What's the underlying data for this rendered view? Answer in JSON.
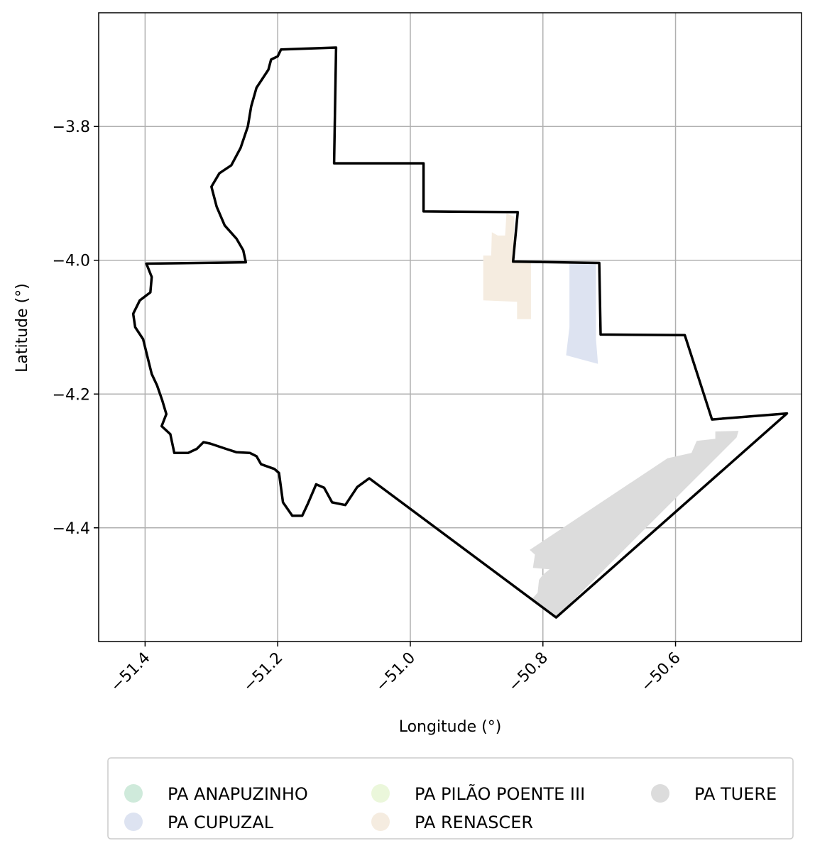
{
  "chart_data": {
    "type": "map",
    "xlabel": "Longitude (°)",
    "ylabel": "Latitude (°)",
    "xlim": [
      -51.47,
      -50.41
    ],
    "ylim": [
      -4.57,
      -3.63
    ],
    "x_ticks": [
      {
        "value": -51.4,
        "label": "−51.4"
      },
      {
        "value": -51.2,
        "label": "−51.2"
      },
      {
        "value": -51.0,
        "label": "−51.0"
      },
      {
        "value": -50.8,
        "label": "−50.8"
      },
      {
        "value": -50.6,
        "label": "−50.6"
      }
    ],
    "y_ticks": [
      {
        "value": -3.8,
        "label": "−3.8"
      },
      {
        "value": -4.0,
        "label": "−4.0"
      },
      {
        "value": -4.2,
        "label": "−4.2"
      },
      {
        "value": -4.4,
        "label": "−4.4"
      }
    ],
    "grid": true,
    "legend_placement": "bottom-center",
    "boundary_color": "#000000",
    "boundary": [
      [
        -51.195,
        -3.685
      ],
      [
        -51.112,
        -3.682
      ],
      [
        -51.115,
        -3.855
      ],
      [
        -50.98,
        -3.855
      ],
      [
        -50.98,
        -3.927
      ],
      [
        -50.838,
        -3.928
      ],
      [
        -50.845,
        -4.002
      ],
      [
        -50.715,
        -4.004
      ],
      [
        -50.713,
        -4.111
      ],
      [
        -50.586,
        -4.112
      ],
      [
        -50.545,
        -4.238
      ],
      [
        -50.432,
        -4.229
      ],
      [
        -50.78,
        -4.534
      ],
      [
        -51.062,
        -4.326
      ],
      [
        -51.08,
        -4.339
      ],
      [
        -51.098,
        -4.366
      ],
      [
        -51.118,
        -4.362
      ],
      [
        -51.13,
        -4.34
      ],
      [
        -51.142,
        -4.335
      ],
      [
        -51.155,
        -4.365
      ],
      [
        -51.163,
        -4.382
      ],
      [
        -51.178,
        -4.382
      ],
      [
        -51.192,
        -4.362
      ],
      [
        -51.198,
        -4.318
      ],
      [
        -51.205,
        -4.312
      ],
      [
        -51.225,
        -4.305
      ],
      [
        -51.232,
        -4.293
      ],
      [
        -51.242,
        -4.288
      ],
      [
        -51.262,
        -4.287
      ],
      [
        -51.278,
        -4.282
      ],
      [
        -51.302,
        -4.274
      ],
      [
        -51.312,
        -4.272
      ],
      [
        -51.322,
        -4.282
      ],
      [
        -51.335,
        -4.288
      ],
      [
        -51.356,
        -4.288
      ],
      [
        -51.362,
        -4.26
      ],
      [
        -51.375,
        -4.248
      ],
      [
        -51.368,
        -4.23
      ],
      [
        -51.374,
        -4.21
      ],
      [
        -51.382,
        -4.187
      ],
      [
        -51.39,
        -4.17
      ],
      [
        -51.395,
        -4.15
      ],
      [
        -51.403,
        -4.118
      ],
      [
        -51.415,
        -4.1
      ],
      [
        -51.418,
        -4.08
      ],
      [
        -51.408,
        -4.06
      ],
      [
        -51.392,
        -4.048
      ],
      [
        -51.39,
        -4.025
      ],
      [
        -51.398,
        -4.005
      ],
      [
        -51.248,
        -4.003
      ],
      [
        -51.252,
        -3.985
      ],
      [
        -51.262,
        -3.968
      ],
      [
        -51.28,
        -3.948
      ],
      [
        -51.292,
        -3.92
      ],
      [
        -51.3,
        -3.89
      ],
      [
        -51.288,
        -3.87
      ],
      [
        -51.27,
        -3.858
      ],
      [
        -51.256,
        -3.832
      ],
      [
        -51.245,
        -3.8
      ],
      [
        -51.24,
        -3.77
      ],
      [
        -51.232,
        -3.742
      ],
      [
        -51.214,
        -3.715
      ],
      [
        -51.21,
        -3.7
      ],
      [
        -51.2,
        -3.695
      ],
      [
        -51.195,
        -3.685
      ]
    ],
    "series": [
      {
        "name": "PA ANAPUZINHO",
        "color": "#cfeadb",
        "polygons": []
      },
      {
        "name": "PA CUPUZAL",
        "color": "#dde3f1",
        "polygons": [
          [
            [
              -50.76,
              -4.005
            ],
            [
              -50.72,
              -4.005
            ],
            [
              -50.72,
              -4.118
            ],
            [
              -50.717,
              -4.155
            ],
            [
              -50.765,
              -4.142
            ],
            [
              -50.76,
              -4.1
            ]
          ]
        ]
      },
      {
        "name": "PA PILÃO POENTE III",
        "color": "#ebf7db",
        "polygons": []
      },
      {
        "name": "PA RENASCER",
        "color": "#f5ece0",
        "polygons": [
          [
            [
              -50.868,
              -3.963
            ],
            [
              -50.857,
              -3.963
            ],
            [
              -50.855,
              -3.93
            ],
            [
              -50.843,
              -3.935
            ],
            [
              -50.845,
              -4.002
            ],
            [
              -50.818,
              -4.002
            ],
            [
              -50.818,
              -4.088
            ],
            [
              -50.839,
              -4.088
            ],
            [
              -50.839,
              -4.062
            ],
            [
              -50.89,
              -4.06
            ],
            [
              -50.89,
              -3.993
            ],
            [
              -50.878,
              -3.993
            ],
            [
              -50.877,
              -3.958
            ]
          ]
        ]
      },
      {
        "name": "PA TUERE",
        "color": "#dcdcdc",
        "polygons": [
          [
            [
              -50.82,
              -4.433
            ],
            [
              -50.612,
              -4.296
            ],
            [
              -50.576,
              -4.288
            ],
            [
              -50.568,
              -4.27
            ],
            [
              -50.54,
              -4.267
            ],
            [
              -50.54,
              -4.256
            ],
            [
              -50.505,
              -4.255
            ],
            [
              -50.508,
              -4.265
            ],
            [
              -50.78,
              -4.534
            ],
            [
              -50.818,
              -4.508
            ],
            [
              -50.808,
              -4.497
            ],
            [
              -50.806,
              -4.478
            ],
            [
              -50.8,
              -4.47
            ],
            [
              -50.79,
              -4.462
            ],
            [
              -50.815,
              -4.46
            ],
            [
              -50.812,
              -4.44
            ]
          ]
        ]
      }
    ],
    "legend_columns": [
      [
        "PA ANAPUZINHO",
        "PA CUPUZAL"
      ],
      [
        "PA PILÃO POENTE III",
        "PA RENASCER"
      ],
      [
        "PA TUERE"
      ]
    ]
  }
}
